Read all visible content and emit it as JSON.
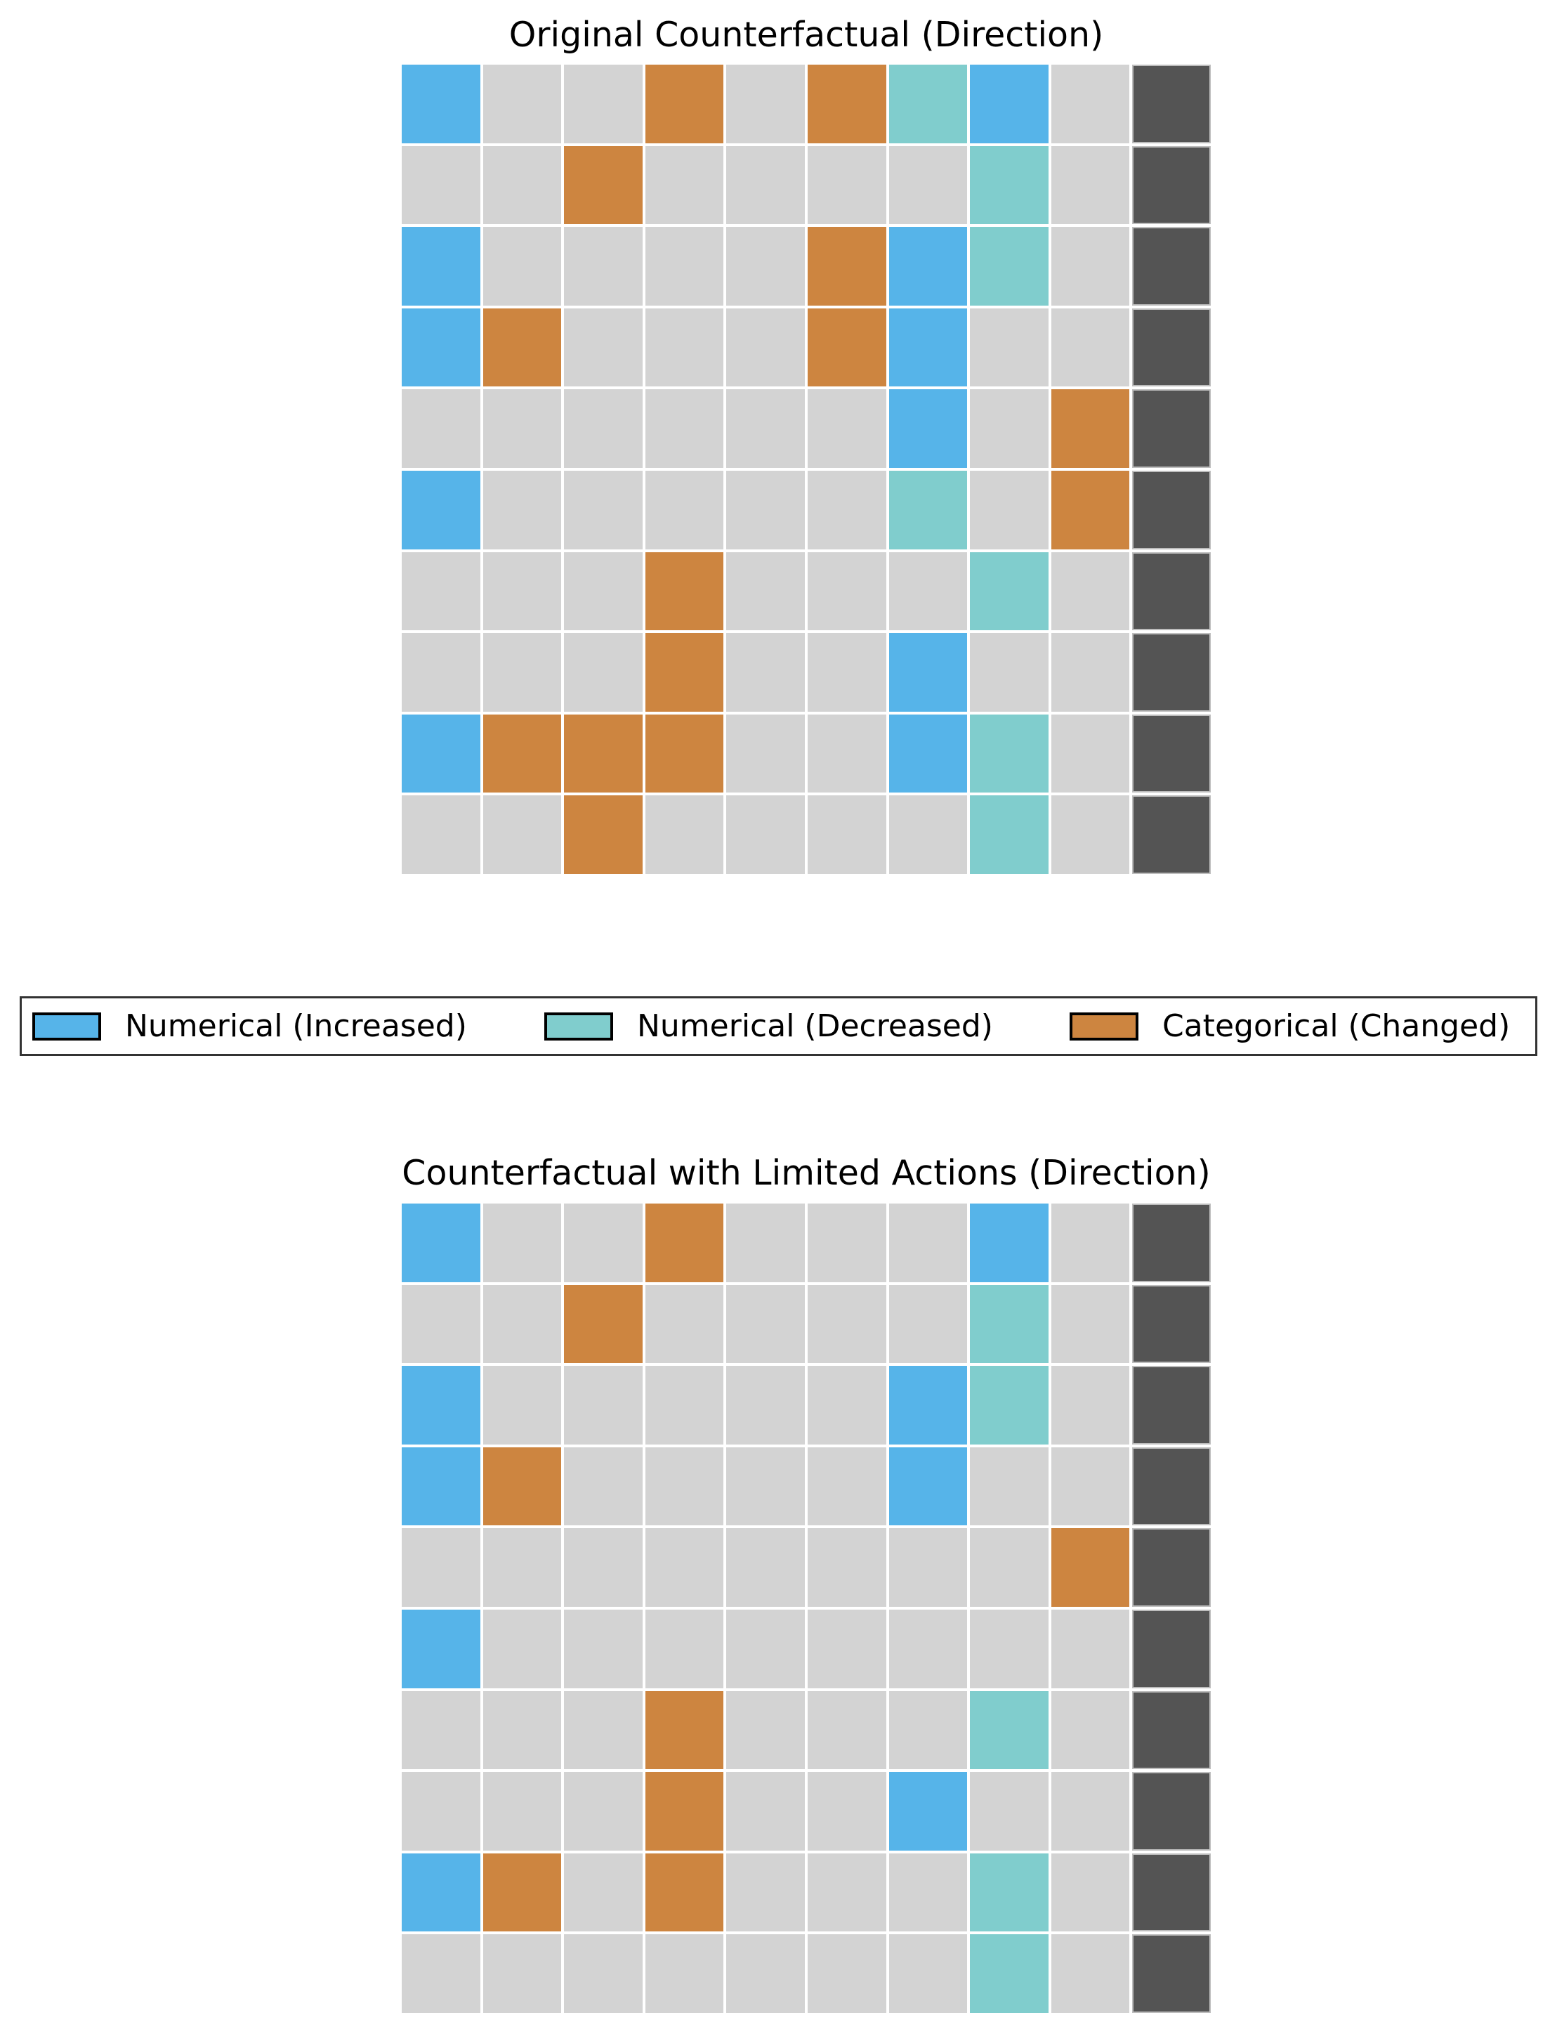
{
  "colors": {
    "increased": "#56b4e9",
    "decreased": "#80cdcd",
    "changed": "#cd8540",
    "unchanged": "#d3d3d3",
    "target": "#545454"
  },
  "legend": {
    "items": [
      {
        "key": "increased",
        "label": "Numerical (Increased)",
        "color": "#56b4e9"
      },
      {
        "key": "decreased",
        "label": "Numerical (Decreased)",
        "color": "#80cdcd"
      },
      {
        "key": "changed",
        "label": "Categorical (Changed)",
        "color": "#cd8540"
      }
    ]
  },
  "charts": [
    {
      "title": "Original Counterfactual (Direction)"
    },
    {
      "title": "Counterfactual with Limited Actions (Direction)"
    }
  ],
  "chart_data": [
    {
      "type": "heatmap",
      "title": "Original Counterfactual (Direction)",
      "xlabel": "",
      "ylabel": "",
      "rows": 10,
      "cols": 10,
      "legend": [
        "Numerical (Increased)",
        "Numerical (Decreased)",
        "Categorical (Changed)"
      ],
      "legend_position": "below",
      "value_key": {
        "0": "unchanged",
        "I": "Numerical (Increased)",
        "D": "Numerical (Decreased)",
        "C": "Categorical (Changed)",
        "T": "target column"
      },
      "matrix": [
        [
          "I",
          "0",
          "0",
          "C",
          "0",
          "C",
          "D",
          "I",
          "0",
          "T"
        ],
        [
          "0",
          "0",
          "C",
          "0",
          "0",
          "0",
          "0",
          "D",
          "0",
          "T"
        ],
        [
          "I",
          "0",
          "0",
          "0",
          "0",
          "C",
          "I",
          "D",
          "0",
          "T"
        ],
        [
          "I",
          "C",
          "0",
          "0",
          "0",
          "C",
          "I",
          "0",
          "0",
          "T"
        ],
        [
          "0",
          "0",
          "0",
          "0",
          "0",
          "0",
          "I",
          "0",
          "C",
          "T"
        ],
        [
          "I",
          "0",
          "0",
          "0",
          "0",
          "0",
          "D",
          "0",
          "C",
          "T"
        ],
        [
          "0",
          "0",
          "0",
          "C",
          "0",
          "0",
          "0",
          "D",
          "0",
          "T"
        ],
        [
          "0",
          "0",
          "0",
          "C",
          "0",
          "0",
          "I",
          "0",
          "0",
          "T"
        ],
        [
          "I",
          "C",
          "C",
          "C",
          "0",
          "0",
          "I",
          "D",
          "0",
          "T"
        ],
        [
          "0",
          "0",
          "C",
          "0",
          "0",
          "0",
          "0",
          "D",
          "0",
          "T"
        ]
      ]
    },
    {
      "type": "heatmap",
      "title": "Counterfactual with Limited Actions (Direction)",
      "xlabel": "",
      "ylabel": "",
      "rows": 10,
      "cols": 10,
      "legend": [
        "Numerical (Increased)",
        "Numerical (Decreased)",
        "Categorical (Changed)"
      ],
      "legend_position": "above",
      "value_key": {
        "0": "unchanged",
        "I": "Numerical (Increased)",
        "D": "Numerical (Decreased)",
        "C": "Categorical (Changed)",
        "T": "target column"
      },
      "matrix": [
        [
          "I",
          "0",
          "0",
          "C",
          "0",
          "0",
          "0",
          "I",
          "0",
          "T"
        ],
        [
          "0",
          "0",
          "C",
          "0",
          "0",
          "0",
          "0",
          "D",
          "0",
          "T"
        ],
        [
          "I",
          "0",
          "0",
          "0",
          "0",
          "0",
          "I",
          "D",
          "0",
          "T"
        ],
        [
          "I",
          "C",
          "0",
          "0",
          "0",
          "0",
          "I",
          "0",
          "0",
          "T"
        ],
        [
          "0",
          "0",
          "0",
          "0",
          "0",
          "0",
          "0",
          "0",
          "C",
          "T"
        ],
        [
          "I",
          "0",
          "0",
          "0",
          "0",
          "0",
          "0",
          "0",
          "0",
          "T"
        ],
        [
          "0",
          "0",
          "0",
          "C",
          "0",
          "0",
          "0",
          "D",
          "0",
          "T"
        ],
        [
          "0",
          "0",
          "0",
          "C",
          "0",
          "0",
          "I",
          "0",
          "0",
          "T"
        ],
        [
          "I",
          "C",
          "0",
          "C",
          "0",
          "0",
          "0",
          "D",
          "0",
          "T"
        ],
        [
          "0",
          "0",
          "0",
          "0",
          "0",
          "0",
          "0",
          "D",
          "0",
          "T"
        ]
      ]
    }
  ]
}
